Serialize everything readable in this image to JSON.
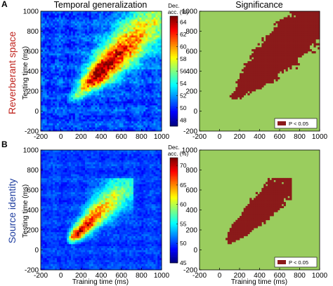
{
  "chart_data": [
    {
      "type": "heatmap",
      "panel": "A",
      "title": "Temporal generalization",
      "row_label": "Reverberant space",
      "row_label_color": "#c0241e",
      "xlabel": "",
      "ylabel": "Testing time (ms)",
      "xticks": [
        "-200",
        "0",
        "200",
        "400",
        "600",
        "800",
        "1000"
      ],
      "yticks": [
        "-200",
        "0",
        "200",
        "400",
        "600",
        "800",
        "1000"
      ],
      "xlim": [
        -200,
        1000
      ],
      "ylim": [
        -200,
        1000
      ],
      "colorbar_label_line1": "Dec.",
      "colorbar_label_line2": "acc. (%)",
      "colorbar_ticks": [
        "48",
        "50",
        "52",
        "54",
        "56",
        "58",
        "60",
        "62",
        "64"
      ],
      "colorbar_range": [
        47,
        65
      ],
      "colormap": "jet",
      "baseline": 50.5,
      "diagonal_peak": {
        "time_ms": 370,
        "value": 64.5
      },
      "diagonal_band_end_ms": 900
    },
    {
      "type": "heatmap",
      "panel": "A",
      "title": "Significance",
      "xlabel": "",
      "ylabel": "",
      "xticks": [
        "-200",
        "0",
        "200",
        "400",
        "600",
        "800",
        "1000"
      ],
      "yticks": [
        "-200",
        "0",
        "200",
        "400",
        "600",
        "800",
        "1000"
      ],
      "xlim": [
        -200,
        1000
      ],
      "ylim": [
        -200,
        1000
      ],
      "legend_label": "P < 0.05",
      "legend_position": "bottom-right",
      "background_color": "#9acd5e",
      "significant_color": "#8b1a1a"
    },
    {
      "type": "heatmap",
      "panel": "B",
      "title": "",
      "row_label": "Source identity",
      "row_label_color": "#1f3ea0",
      "xlabel": "Training time (ms)",
      "ylabel": "Testing time (ms)",
      "xticks": [
        "-200",
        "0",
        "200",
        "400",
        "600",
        "800",
        "1000"
      ],
      "yticks": [
        "-200",
        "0",
        "200",
        "400",
        "600",
        "800",
        "1000"
      ],
      "xlim": [
        -200,
        1000
      ],
      "ylim": [
        -200,
        1000
      ],
      "colorbar_label_line1": "Dec.",
      "colorbar_label_line2": "acc. (%)",
      "colorbar_ticks": [
        "45",
        "50",
        "55",
        "60",
        "65",
        "70"
      ],
      "colorbar_range": [
        45,
        72
      ],
      "colormap": "jet",
      "baseline": 50,
      "diagonal_peak": {
        "time_ms": 150,
        "value": 71
      },
      "diagonal_band_end_ms": 600
    },
    {
      "type": "heatmap",
      "panel": "B",
      "title": "",
      "xlabel": "Training time (ms)",
      "ylabel": "",
      "xticks": [
        "-200",
        "0",
        "200",
        "400",
        "600",
        "800",
        "1000"
      ],
      "yticks": [
        "-200",
        "0",
        "200",
        "400",
        "600",
        "800",
        "1000"
      ],
      "xlim": [
        -200,
        1000
      ],
      "ylim": [
        -200,
        1000
      ],
      "legend_label": "P < 0.05",
      "legend_position": "bottom-right",
      "background_color": "#9acd5e",
      "significant_color": "#8b1a1a"
    }
  ],
  "panel_labels": [
    "A",
    "B"
  ]
}
